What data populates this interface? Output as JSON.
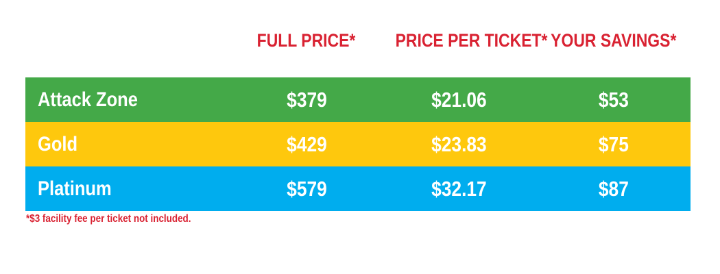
{
  "table": {
    "headers": [
      "FULL PRICE*",
      "PRICE PER TICKET*",
      "YOUR SAVINGS*"
    ],
    "rows": [
      {
        "tier": "Attack Zone",
        "full_price": "$379",
        "price_per_ticket": "$21.06",
        "savings": "$53",
        "color": "#44A948"
      },
      {
        "tier": "Gold",
        "full_price": "$429",
        "price_per_ticket": "$23.83",
        "savings": "$75",
        "color": "#FEC80D"
      },
      {
        "tier": "Platinum",
        "full_price": "$579",
        "price_per_ticket": "$32.17",
        "savings": "$87",
        "color": "#00ADEE"
      }
    ],
    "footnote": "*$3 facility fee per ticket not included."
  },
  "colors": {
    "header_red": "#D92232",
    "row_text": "#FFFFFF",
    "row_green": "#44A948",
    "row_gold": "#FEC80D",
    "row_blue": "#00ADEE",
    "background": "#FFFFFF"
  },
  "chart_data": {
    "type": "table",
    "columns": [
      "",
      "FULL PRICE*",
      "PRICE PER TICKET*",
      "YOUR SAVINGS*"
    ],
    "rows": [
      [
        "Attack Zone",
        "$379",
        "$21.06",
        "$53"
      ],
      [
        "Gold",
        "$429",
        "$23.83",
        "$75"
      ],
      [
        "Platinum",
        "$579",
        "$32.17",
        "$87"
      ]
    ],
    "footnote": "*$3 facility fee per ticket not included.",
    "row_colors": [
      "#44A948",
      "#FEC80D",
      "#00ADEE"
    ],
    "header_text_color": "#D92232",
    "cell_text_color": "#FFFFFF"
  }
}
